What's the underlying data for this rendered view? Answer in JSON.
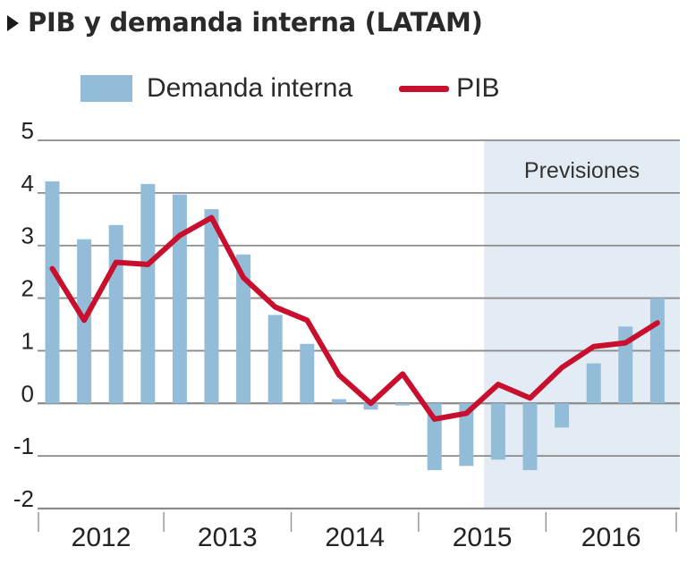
{
  "header": {
    "title": "PIB y demanda interna (LATAM)"
  },
  "legend": {
    "bars_label": "Demanda interna",
    "line_label": "PIB"
  },
  "colors": {
    "bars": "#93bcd9",
    "line": "#c8102e",
    "forecast_shade": "#e3ecf5",
    "grid": "#8a8a8a"
  },
  "chart_data": {
    "type": "bar",
    "title": "PIB y demanda interna (LATAM)",
    "xlabel": "",
    "ylabel": "",
    "ylim": [
      -2,
      5
    ],
    "yticks": [
      5,
      4,
      3,
      2,
      1,
      0,
      -1,
      -2
    ],
    "grid": true,
    "legend_position": "top",
    "year_labels": [
      "2012",
      "2013",
      "2014",
      "2015",
      "2016"
    ],
    "quarters_per_year": 4,
    "forecast": {
      "label": "Previsiones",
      "start_index": 14
    },
    "series": [
      {
        "name": "Demanda interna",
        "type": "bar",
        "values": [
          4.22,
          3.12,
          3.39,
          4.17,
          3.97,
          3.69,
          2.83,
          1.68,
          1.13,
          0.08,
          -0.12,
          -0.04,
          -1.27,
          -1.19,
          -1.07,
          -1.27,
          -0.46,
          0.76,
          1.46,
          2.0
        ]
      },
      {
        "name": "PIB",
        "type": "line",
        "values": [
          2.56,
          1.58,
          2.68,
          2.64,
          3.19,
          3.53,
          2.39,
          1.83,
          1.58,
          0.54,
          0.0,
          0.56,
          -0.3,
          -0.19,
          0.36,
          0.1,
          0.68,
          1.08,
          1.15,
          1.53
        ]
      }
    ]
  }
}
